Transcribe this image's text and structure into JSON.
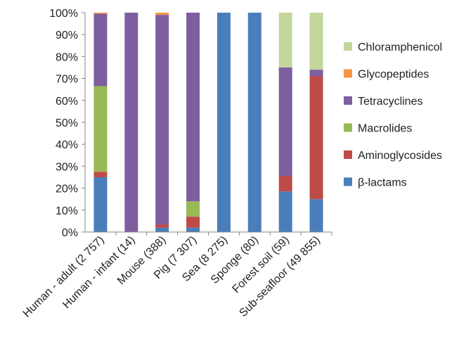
{
  "chart_data": {
    "type": "bar",
    "stacked": true,
    "title": "",
    "xlabel": "",
    "ylabel": "",
    "ylim": [
      0,
      100
    ],
    "y_ticks": [
      "0%",
      "10%",
      "20%",
      "30%",
      "40%",
      "50%",
      "60%",
      "70%",
      "80%",
      "90%",
      "100%"
    ],
    "grid": false,
    "legend_position": "right",
    "categories": [
      "Human - adult (2 757)",
      "Human - infant (14)",
      "Mouse (388)",
      "Pig (7 307)",
      "Sea (8 275)",
      "Sponge (80)",
      "Forest soil (59)",
      "Sub-seafloor (49 855)"
    ],
    "series": [
      {
        "name": "β-lactams",
        "color": "#4a7ebb",
        "values": [
          25,
          0,
          2,
          2,
          100,
          100,
          18.5,
          15
        ]
      },
      {
        "name": "Aminoglycosides",
        "color": "#be4b48",
        "values": [
          2.5,
          0,
          1.5,
          5,
          0,
          0,
          7,
          56
        ]
      },
      {
        "name": "Macrolides",
        "color": "#98b954",
        "values": [
          39,
          0,
          0,
          7,
          0,
          0,
          0,
          0
        ]
      },
      {
        "name": "Tetracyclines",
        "color": "#7d5fa0",
        "values": [
          33,
          100,
          95.5,
          86,
          0,
          0,
          49.5,
          3
        ]
      },
      {
        "name": "Glycopeptides",
        "color": "#f79646",
        "values": [
          0.5,
          0,
          1,
          0,
          0,
          0,
          0,
          0
        ]
      },
      {
        "name": "Chloramphenicol",
        "color": "#c3d69b",
        "values": [
          0,
          0,
          0,
          0,
          0,
          0,
          25,
          26
        ]
      }
    ]
  }
}
